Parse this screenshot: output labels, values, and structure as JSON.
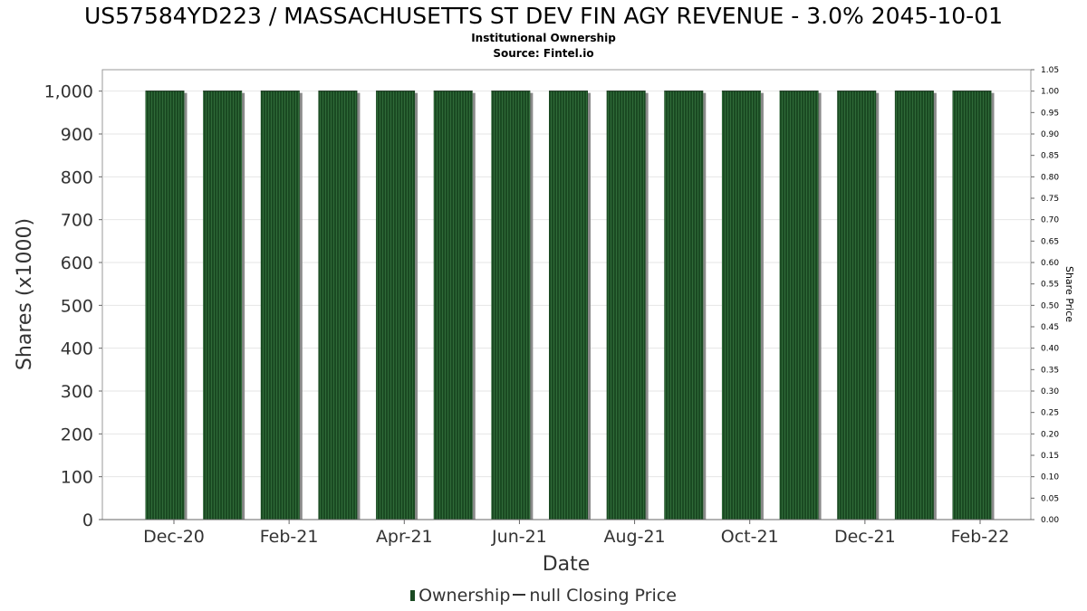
{
  "chart_data": {
    "type": "bar",
    "title": "US57584YD223 / MASSACHUSETTS ST DEV FIN AGY REVENUE - 3.0% 2045-10-01",
    "subtitle": "Institutional Ownership",
    "source": "Source: Fintel.io",
    "xlabel": "Date",
    "ylabel": "Shares (x1000)",
    "y2label": "Share Price",
    "x_ticks": [
      "Dec-20",
      "Feb-21",
      "Apr-21",
      "Jun-21",
      "Aug-21",
      "Oct-21",
      "Dec-21",
      "Feb-22"
    ],
    "y_ticks": [
      "0",
      "100",
      "200",
      "300",
      "400",
      "500",
      "600",
      "700",
      "800",
      "900",
      "1,000"
    ],
    "y2_ticks": [
      "0.00",
      "0.05",
      "0.10",
      "0.15",
      "0.20",
      "0.25",
      "0.30",
      "0.35",
      "0.40",
      "0.45",
      "0.50",
      "0.55",
      "0.60",
      "0.65",
      "0.70",
      "0.75",
      "0.80",
      "0.85",
      "0.90",
      "0.95",
      "1.00",
      "1.05"
    ],
    "ylim": [
      0,
      1050
    ],
    "y2lim": [
      0,
      1.05
    ],
    "series": [
      {
        "name": "Ownership",
        "color": "#1a4a22",
        "values": [
          1000,
          1000,
          1000,
          1000,
          1000,
          1000,
          1000,
          1000,
          1000,
          1000,
          1000,
          1000,
          1000,
          1000,
          1000
        ]
      }
    ],
    "legend": {
      "position": "bottom",
      "items": [
        "Ownership",
        "null Closing Price"
      ]
    },
    "grid": true
  }
}
